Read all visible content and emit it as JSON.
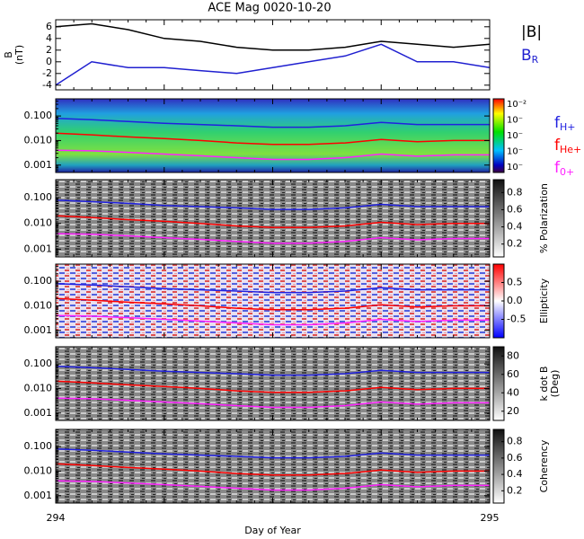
{
  "title": "ACE Mag 0020-10-20",
  "chart_data": [
    {
      "type": "line",
      "ylabel": [
        "B",
        "(nT)"
      ],
      "xlim": [
        294,
        295
      ],
      "ylim": [
        -4.8,
        7.2
      ],
      "yticks": [
        -4,
        -2,
        0,
        2,
        4,
        6
      ],
      "x": [
        294,
        294.083,
        294.167,
        294.25,
        294.333,
        294.417,
        294.5,
        294.583,
        294.667,
        294.75,
        294.833,
        294.917,
        295
      ],
      "series": [
        {
          "name": "|B|",
          "color": "#000000",
          "values": [
            6,
            6.5,
            5.5,
            4,
            3.5,
            2.5,
            2,
            2,
            2.5,
            3.5,
            3,
            2.5,
            3
          ]
        },
        {
          "name": "B",
          "subscript": "R",
          "color": "#2020d0",
          "values": [
            -4,
            0,
            -1,
            -1,
            -1.5,
            -2,
            -1,
            0,
            1,
            3,
            0,
            0,
            -1
          ]
        }
      ]
    },
    {
      "type": "line",
      "ylog": true,
      "xlim": [
        294,
        295
      ],
      "ylim": [
        0.0005,
        0.5
      ],
      "yticks": [
        {
          "value": 0.001,
          "label": "0.001"
        },
        {
          "value": 0.01,
          "label": "0.010"
        },
        {
          "value": 0.1,
          "label": "0.100"
        }
      ],
      "x": [
        294,
        294.083,
        294.167,
        294.25,
        294.333,
        294.417,
        294.5,
        294.583,
        294.667,
        294.75,
        294.833,
        294.917,
        295
      ],
      "legend": true,
      "series": [
        {
          "name": "f",
          "subscript": "H+",
          "color": "#2020e0",
          "values": [
            0.08,
            0.07,
            0.06,
            0.05,
            0.045,
            0.04,
            0.035,
            0.035,
            0.04,
            0.055,
            0.045,
            0.045,
            0.045
          ]
        },
        {
          "name": "f",
          "subscript": "He+",
          "color": "#ff0000",
          "values": [
            0.02,
            0.017,
            0.014,
            0.012,
            0.01,
            0.008,
            0.007,
            0.007,
            0.008,
            0.011,
            0.009,
            0.01,
            0.01
          ]
        },
        {
          "name": "f",
          "subscript": "0+",
          "color": "#ff20ff",
          "values": [
            0.004,
            0.0038,
            0.0033,
            0.0028,
            0.0024,
            0.002,
            0.0017,
            0.0017,
            0.002,
            0.0028,
            0.0023,
            0.0026,
            0.0026
          ]
        }
      ],
      "colorbar": {
        "tick_labels": [
          "10⁻²",
          "10⁻",
          "10⁻",
          "10⁻",
          "10⁻"
        ]
      }
    },
    {
      "type": "line",
      "ylog": true,
      "xlim": [
        294,
        295
      ],
      "ylim": [
        0.0005,
        0.5
      ],
      "yticks": [
        {
          "value": 0.001,
          "label": "0.001"
        },
        {
          "value": 0.01,
          "label": "0.010"
        },
        {
          "value": 0.1,
          "label": "0.100"
        }
      ],
      "x": [
        294,
        294.083,
        294.167,
        294.25,
        294.333,
        294.417,
        294.5,
        294.583,
        294.667,
        294.75,
        294.833,
        294.917,
        295
      ],
      "series": [
        {
          "color": "#2020e0",
          "values": [
            0.08,
            0.07,
            0.06,
            0.05,
            0.045,
            0.04,
            0.035,
            0.035,
            0.04,
            0.055,
            0.045,
            0.045,
            0.045
          ]
        },
        {
          "color": "#ff0000",
          "values": [
            0.02,
            0.017,
            0.014,
            0.012,
            0.01,
            0.008,
            0.007,
            0.007,
            0.008,
            0.011,
            0.009,
            0.01,
            0.01
          ]
        },
        {
          "color": "#ff20ff",
          "values": [
            0.004,
            0.0038,
            0.0033,
            0.0028,
            0.0024,
            0.002,
            0.0017,
            0.0017,
            0.002,
            0.0028,
            0.0023,
            0.0026,
            0.0026
          ]
        }
      ],
      "colorbar": {
        "label": [
          "% Polarization"
        ],
        "clim": [
          0.05,
          0.95
        ],
        "ticks": [
          0.2,
          0.4,
          0.6,
          0.8
        ]
      }
    },
    {
      "type": "line",
      "ylog": true,
      "xlim": [
        294,
        295
      ],
      "ylim": [
        0.0005,
        0.5
      ],
      "yticks": [
        {
          "value": 0.001,
          "label": "0.001"
        },
        {
          "value": 0.01,
          "label": "0.010"
        },
        {
          "value": 0.1,
          "label": "0.100"
        }
      ],
      "x": [
        294,
        294.083,
        294.167,
        294.25,
        294.333,
        294.417,
        294.5,
        294.583,
        294.667,
        294.75,
        294.833,
        294.917,
        295
      ],
      "series": [
        {
          "color": "#2020e0",
          "values": [
            0.08,
            0.07,
            0.06,
            0.05,
            0.045,
            0.04,
            0.035,
            0.035,
            0.04,
            0.055,
            0.045,
            0.045,
            0.045
          ]
        },
        {
          "color": "#ff0000",
          "values": [
            0.02,
            0.017,
            0.014,
            0.012,
            0.01,
            0.008,
            0.007,
            0.007,
            0.008,
            0.011,
            0.009,
            0.01,
            0.01
          ]
        },
        {
          "color": "#ff20ff",
          "values": [
            0.004,
            0.0038,
            0.0033,
            0.0028,
            0.0024,
            0.002,
            0.0017,
            0.0017,
            0.002,
            0.0028,
            0.0023,
            0.0026,
            0.0026
          ]
        }
      ],
      "colorbar": {
        "label": [
          "Ellipticity"
        ],
        "clim": [
          -1,
          1
        ],
        "ticks": [
          -0.5,
          {
            "value": 0,
            "label": "0.0"
          },
          0.5
        ]
      }
    },
    {
      "type": "line",
      "ylog": true,
      "xlim": [
        294,
        295
      ],
      "ylim": [
        0.0005,
        0.5
      ],
      "yticks": [
        {
          "value": 0.001,
          "label": "0.001"
        },
        {
          "value": 0.01,
          "label": "0.010"
        },
        {
          "value": 0.1,
          "label": "0.100"
        }
      ],
      "x": [
        294,
        294.083,
        294.167,
        294.25,
        294.333,
        294.417,
        294.5,
        294.583,
        294.667,
        294.75,
        294.833,
        294.917,
        295
      ],
      "series": [
        {
          "color": "#2020e0",
          "values": [
            0.08,
            0.07,
            0.06,
            0.05,
            0.045,
            0.04,
            0.035,
            0.035,
            0.04,
            0.055,
            0.045,
            0.045,
            0.045
          ]
        },
        {
          "color": "#ff0000",
          "values": [
            0.02,
            0.017,
            0.014,
            0.012,
            0.01,
            0.008,
            0.007,
            0.007,
            0.008,
            0.011,
            0.009,
            0.01,
            0.01
          ]
        },
        {
          "color": "#ff20ff",
          "values": [
            0.004,
            0.0038,
            0.0033,
            0.0028,
            0.0024,
            0.002,
            0.0017,
            0.0017,
            0.002,
            0.0028,
            0.0023,
            0.0026,
            0.0026
          ]
        }
      ],
      "colorbar": {
        "label": [
          "k dot B",
          "(Deg)"
        ],
        "clim": [
          10,
          90
        ],
        "ticks": [
          20,
          40,
          60,
          80
        ]
      }
    },
    {
      "type": "line",
      "ylog": true,
      "xlim": [
        294,
        295
      ],
      "ylim": [
        0.0005,
        0.5
      ],
      "yticks": [
        {
          "value": 0.001,
          "label": "0.001"
        },
        {
          "value": 0.01,
          "label": "0.010"
        },
        {
          "value": 0.1,
          "label": "0.100"
        }
      ],
      "x": [
        294,
        294.083,
        294.167,
        294.25,
        294.333,
        294.417,
        294.5,
        294.583,
        294.667,
        294.75,
        294.833,
        294.917,
        295
      ],
      "series": [
        {
          "color": "#2020e0",
          "values": [
            0.08,
            0.07,
            0.06,
            0.05,
            0.045,
            0.04,
            0.035,
            0.035,
            0.04,
            0.055,
            0.045,
            0.045,
            0.045
          ]
        },
        {
          "color": "#ff0000",
          "values": [
            0.02,
            0.017,
            0.014,
            0.012,
            0.01,
            0.008,
            0.007,
            0.007,
            0.008,
            0.011,
            0.009,
            0.01,
            0.01
          ]
        },
        {
          "color": "#ff20ff",
          "values": [
            0.004,
            0.0038,
            0.0033,
            0.0028,
            0.0024,
            0.002,
            0.0017,
            0.0017,
            0.002,
            0.0028,
            0.0023,
            0.0026,
            0.0026
          ]
        }
      ],
      "colorbar": {
        "label": [
          "Coherency"
        ],
        "clim": [
          0.05,
          0.95
        ],
        "ticks": [
          0.2,
          0.4,
          0.6,
          0.8
        ]
      },
      "xticks": [
        294,
        295
      ],
      "xlabel": "Day of Year"
    }
  ]
}
